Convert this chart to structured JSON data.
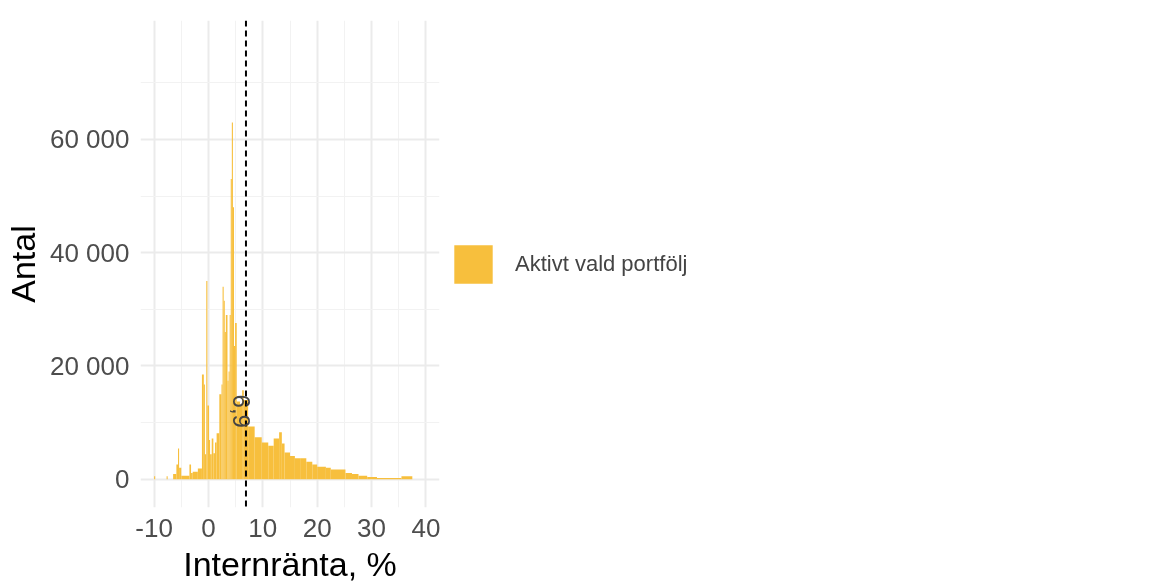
{
  "chart_data": {
    "type": "histogram",
    "xlabel": "Internränta, %",
    "ylabel": "Antal",
    "bins": [
      -10.0,
      -9.8,
      -7.7,
      -7.5,
      -6.5,
      -5.9,
      -5.6,
      -5.4,
      -5.0,
      -3.5,
      -3.2,
      -2.9,
      -1.95,
      -1.2,
      -0.85,
      -0.65,
      -0.4,
      -0.2,
      0.1,
      0.3,
      0.6,
      0.9,
      1.2,
      1.5,
      2.0,
      2.4,
      2.6,
      2.8,
      3.0,
      3.2,
      3.5,
      3.7,
      3.9,
      4.1,
      4.3,
      4.5,
      4.7,
      4.9,
      5.2,
      5.8,
      6.2,
      6.5,
      7.3,
      8.5,
      9.8,
      11.0,
      12.0,
      13.0,
      13.5,
      14.0,
      15.0,
      15.9,
      17.0,
      18.0,
      19.1,
      20.0,
      21.6,
      22.5,
      25.2,
      26.4,
      27.6,
      29.2,
      31.0,
      35.5,
      37.5
    ],
    "series": [
      {
        "name": "Aktivt vald portfölj",
        "color": "#f7bf3d",
        "values": [
          500,
          0,
          500,
          0,
          900,
          2600,
          5400,
          2000,
          600,
          2600,
          1100,
          1300,
          1900,
          18500,
          16700,
          4400,
          35000,
          13000,
          6900,
          4400,
          7200,
          4600,
          6500,
          8100,
          15000,
          16700,
          34000,
          31500,
          26000,
          29000,
          17400,
          19000,
          29000,
          53000,
          63000,
          48000,
          23500,
          27600,
          13700,
          13000,
          15700,
          14000,
          9300,
          7400,
          6500,
          5900,
          7200,
          8300,
          6300,
          4700,
          4100,
          3700,
          3700,
          3100,
          2600,
          2200,
          2000,
          1700,
          1100,
          900,
          600,
          400,
          200,
          500
        ]
      }
    ],
    "xlim": [
      -12.5,
      42.5
    ],
    "xticks": [
      -10,
      0,
      10,
      20,
      30,
      40
    ],
    "ylim": [
      -5000,
      81000
    ],
    "yticks": [
      {
        "value": 0,
        "label": "0"
      },
      {
        "value": 20000,
        "label": "20 000"
      },
      {
        "value": 40000,
        "label": "40 000"
      },
      {
        "value": 60000,
        "label": "60 000"
      }
    ],
    "ref_lines": [
      {
        "axis": "x",
        "value": 6.9,
        "label": "6,9",
        "color": "#000000",
        "line_style": "dashed"
      }
    ],
    "grid": true,
    "legend": "right"
  }
}
